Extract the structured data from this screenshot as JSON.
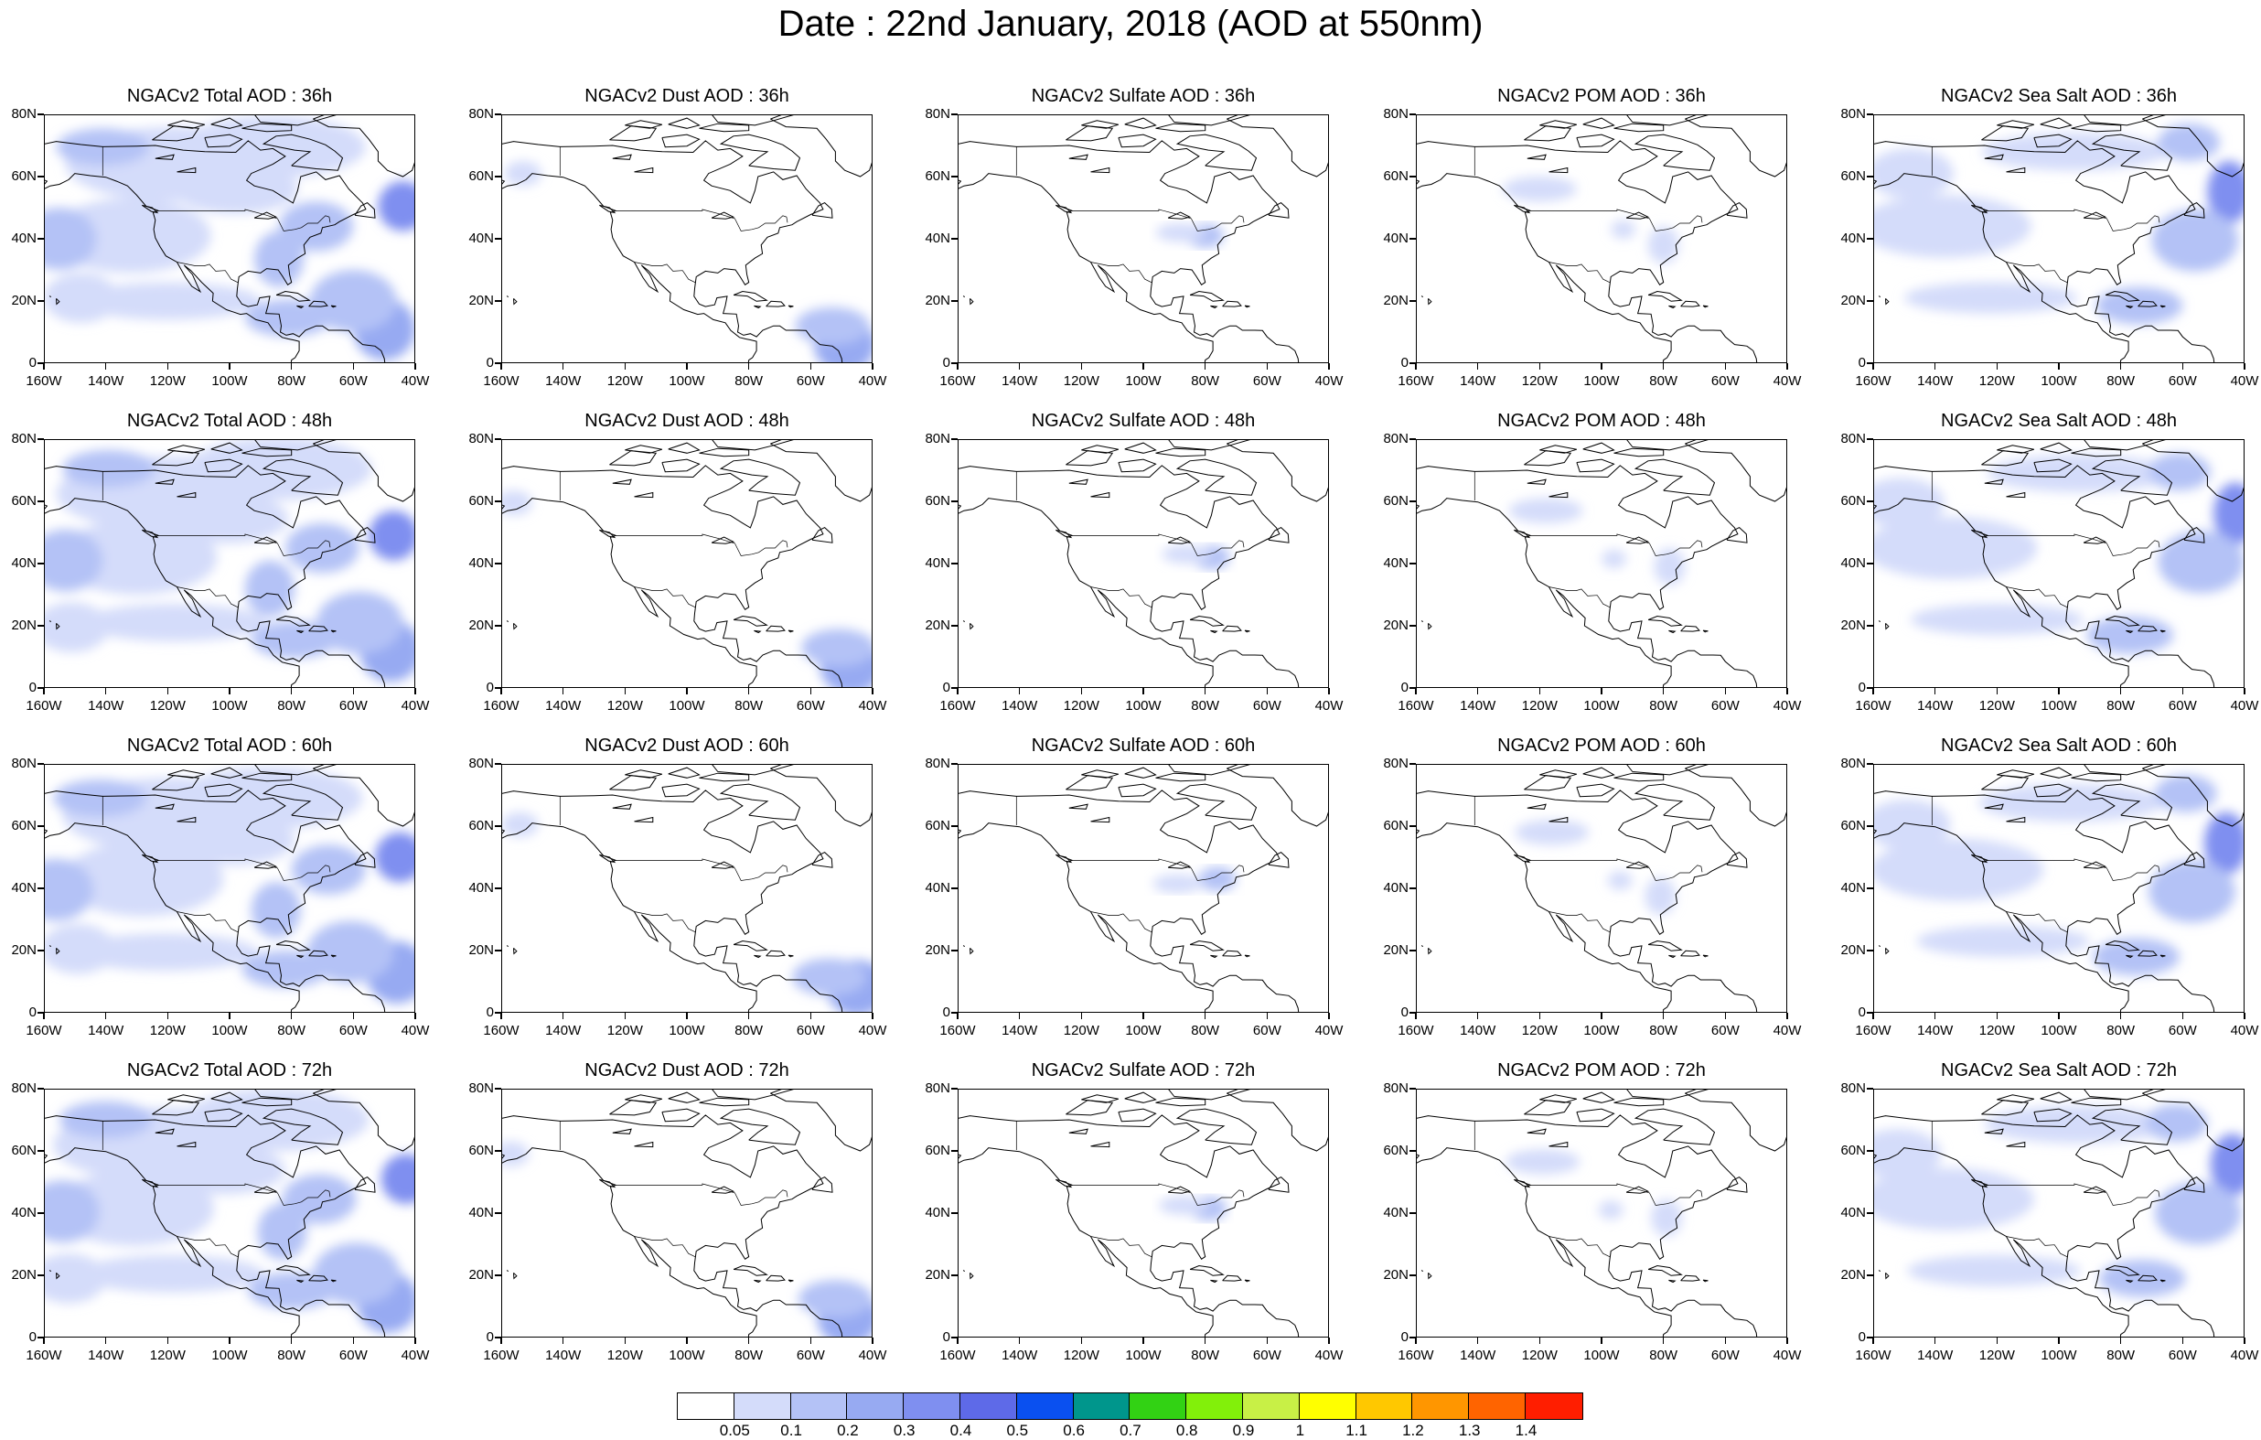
{
  "title": "Date : 22nd January, 2018 (AOD at 550nm)",
  "species": [
    "Total",
    "Dust",
    "Sulfate",
    "POM",
    "Sea Salt"
  ],
  "panels": [
    [
      "NGACv2 Total AOD : 36h",
      "NGACv2 Dust AOD : 36h",
      "NGACv2 Sulfate AOD : 36h",
      "NGACv2 POM AOD : 36h",
      "NGACv2 Sea Salt AOD : 36h"
    ],
    [
      "NGACv2 Total AOD : 48h",
      "NGACv2 Dust AOD : 48h",
      "NGACv2 Sulfate AOD : 48h",
      "NGACv2 POM AOD : 48h",
      "NGACv2 Sea Salt AOD : 48h"
    ],
    [
      "NGACv2 Total AOD : 60h",
      "NGACv2 Dust AOD : 60h",
      "NGACv2 Sulfate AOD : 60h",
      "NGACv2 POM AOD : 60h",
      "NGACv2 Sea Salt AOD : 60h"
    ],
    [
      "NGACv2 Total AOD : 72h",
      "NGACv2 Dust AOD : 72h",
      "NGACv2 Sulfate AOD : 72h",
      "NGACv2 POM AOD : 72h",
      "NGACv2 Sea Salt  AOD : 72h"
    ]
  ],
  "lat_ticks": [
    "80N",
    "60N",
    "40N",
    "20N",
    "0"
  ],
  "lon_ticks": [
    "160W",
    "140W",
    "120W",
    "100W",
    "80W",
    "60W",
    "40W"
  ],
  "map_extent": {
    "lon": [
      -160,
      -40
    ],
    "lat": [
      0,
      80
    ]
  },
  "colorbar": {
    "labels": [
      "0.05",
      "0.1",
      "0.2",
      "0.3",
      "0.4",
      "0.5",
      "0.6",
      "0.7",
      "0.8",
      "0.9",
      "1",
      "1.1",
      "1.2",
      "1.3",
      "1.4"
    ],
    "colors": [
      "#ffffff",
      "#d4dcfa",
      "#b4c2f6",
      "#97aaf2",
      "#7f8ff0",
      "#5e6ae8",
      "#0a50f0",
      "#00968c",
      "#32d214",
      "#82f00a",
      "#c8f046",
      "#ffff00",
      "#ffc800",
      "#ff9600",
      "#ff6400",
      "#ff1e00"
    ]
  }
}
